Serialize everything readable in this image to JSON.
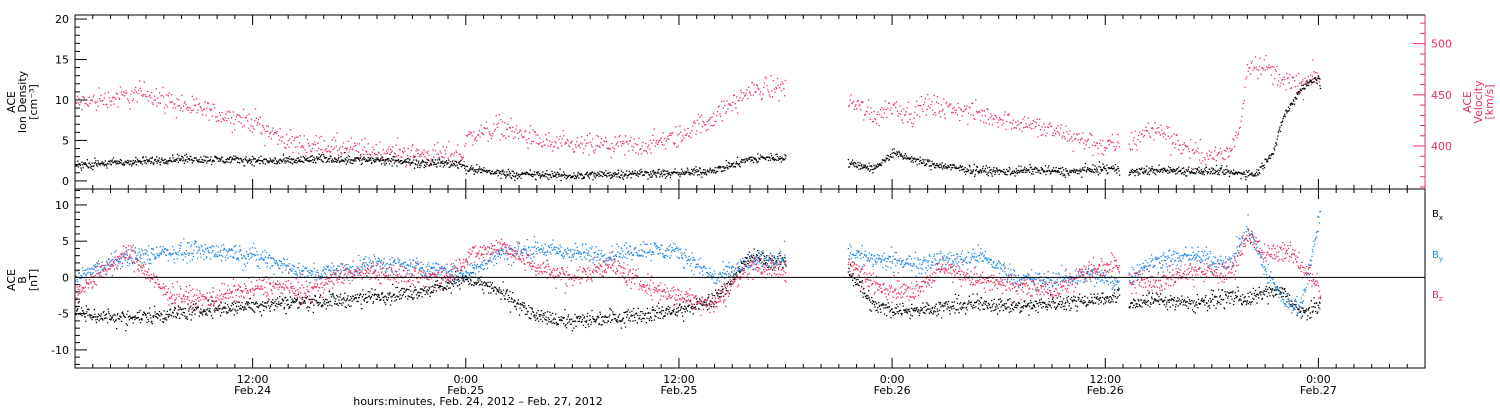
{
  "time_axis": {
    "title": "hours:minutes, Feb. 24, 2012 – Feb. 27, 2012",
    "ticks": [
      {
        "hours": 12,
        "time": "12:00",
        "date": "Feb.24"
      },
      {
        "hours": 24,
        "time": "0:00",
        "date": "Feb.25"
      },
      {
        "hours": 36,
        "time": "12:00",
        "date": "Feb.25"
      },
      {
        "hours": 48,
        "time": "0:00",
        "date": "Feb.26"
      },
      {
        "hours": 60,
        "time": "12:00",
        "date": "Feb.26"
      },
      {
        "hours": 72,
        "time": "0:00",
        "date": "Feb.27"
      }
    ],
    "range_hours": [
      2,
      78
    ]
  },
  "colors": {
    "density": "#000000",
    "velocity": "#e8305c",
    "bx": "#000000",
    "by": "#1e88e5",
    "bz": "#e8305c"
  },
  "chart_data": [
    {
      "type": "scatter",
      "panel": "plasma",
      "ylabel_left": [
        "ACE",
        "Ion Density",
        "[cm⁻³]"
      ],
      "ylabel_right": [
        "ACE",
        "Velocity",
        "[km/s]"
      ],
      "ylim_left": [
        -1,
        20.5
      ],
      "yticks_left": [
        0,
        5,
        10,
        15,
        20
      ],
      "ylim_right": [
        358,
        528
      ],
      "yticks_right": [
        400,
        450,
        500
      ],
      "grid": false,
      "data_gaps_hours": [
        [
          42,
          45.5
        ],
        [
          60.8,
          61.3
        ],
        [
          72.2,
          73.5
        ]
      ],
      "series": [
        {
          "name": "",
          "axis": "left",
          "x": [
            2,
            4,
            6,
            8,
            10,
            12,
            14,
            16,
            18,
            20,
            22,
            23.8,
            24,
            26,
            28,
            30,
            32,
            34,
            36,
            38,
            40,
            41.9,
            45.6,
            47,
            48,
            49,
            50,
            52,
            54,
            56,
            58,
            60,
            60.7,
            61.4,
            63,
            65,
            66.5,
            67.5,
            68.5,
            69.5,
            70,
            71,
            72,
            72.1
          ],
          "y": [
            2.0,
            2.3,
            2.5,
            2.8,
            2.7,
            2.6,
            2.5,
            2.8,
            2.7,
            2.5,
            2.3,
            2.2,
            1.6,
            1.0,
            0.8,
            0.7,
            0.9,
            1.0,
            1.0,
            1.4,
            2.8,
            3.0,
            2.2,
            1.6,
            3.5,
            2.8,
            2.2,
            1.5,
            1.2,
            1.4,
            1.2,
            1.6,
            1.5,
            1.2,
            1.4,
            1.3,
            1.2,
            1.0,
            1.0,
            4.0,
            8.0,
            11.5,
            13.0,
            11.0
          ]
        },
        {
          "name": "",
          "axis": "right",
          "x": [
            2,
            4,
            6,
            8,
            10,
            12,
            14,
            16,
            18,
            20,
            22,
            23.8,
            24,
            26,
            28,
            30,
            32,
            34,
            36,
            38,
            40,
            41.9,
            45.6,
            47,
            48,
            49,
            50,
            52,
            54,
            56,
            58,
            60,
            60.7,
            61.4,
            62.5,
            63.5,
            64.5,
            65.5,
            66.5,
            67,
            67.5,
            68,
            69,
            70,
            71,
            72,
            72.1
          ],
          "y": [
            442,
            447,
            452,
            440,
            432,
            424,
            404,
            400,
            396,
            394,
            392,
            392,
            408,
            420,
            405,
            400,
            402,
            400,
            410,
            430,
            455,
            458,
            445,
            430,
            440,
            432,
            440,
            435,
            428,
            420,
            410,
            400,
            402,
            402,
            418,
            412,
            398,
            390,
            392,
            395,
            415,
            482,
            478,
            465,
            460,
            470,
            458
          ]
        }
      ]
    },
    {
      "type": "scatter",
      "panel": "magnetic",
      "ylabel_left": [
        "ACE",
        "B",
        "[nT]"
      ],
      "ylim": [
        -12.5,
        12.2
      ],
      "yticks": [
        -10,
        -5,
        0,
        5,
        10
      ],
      "zero_line": true,
      "grid": false,
      "legend_position": "right",
      "data_gaps_hours": [
        [
          42,
          45.5
        ],
        [
          60.8,
          61.3
        ],
        [
          72.2,
          73.5
        ]
      ],
      "series": [
        {
          "name": "Bx",
          "legend_main": "B",
          "legend_sub": "x",
          "x": [
            2,
            3,
            5,
            7,
            9,
            11,
            13,
            15,
            17,
            19,
            21,
            23,
            23.8,
            24,
            26,
            28,
            30,
            32,
            34,
            36,
            38,
            40,
            41.9,
            45.6,
            47,
            49,
            51,
            53,
            55,
            57,
            59,
            60.7,
            61.4,
            63,
            65,
            67,
            68,
            69,
            70,
            71,
            72,
            72.1
          ],
          "y": [
            -4.5,
            -5.2,
            -5.5,
            -5.0,
            -4.5,
            -4.0,
            -3.5,
            -3.2,
            -3.0,
            -2.5,
            -2.0,
            -1.0,
            0.0,
            0.0,
            -2.0,
            -5.5,
            -6.0,
            -5.5,
            -5.0,
            -4.5,
            -3.0,
            3.0,
            2.0,
            1.0,
            -4.0,
            -4.5,
            -4.0,
            -3.5,
            -4.0,
            -3.5,
            -3.0,
            -2.5,
            -3.5,
            -3.0,
            -3.5,
            -2.5,
            -3.0,
            -2.0,
            -2.0,
            -5.0,
            -4.0,
            -2.0
          ]
        },
        {
          "name": "By",
          "legend_main": "B",
          "legend_sub": "y",
          "x": [
            2,
            3,
            5,
            7,
            9,
            11,
            13,
            15,
            17,
            19,
            21,
            23,
            23.8,
            24,
            26,
            28,
            30,
            32,
            34,
            36,
            38,
            40,
            41.9,
            45.6,
            47,
            49,
            51,
            53,
            55,
            57,
            59,
            60.7,
            61.4,
            63,
            65,
            67,
            68,
            69,
            70,
            71,
            72,
            72.1
          ],
          "y": [
            0.0,
            1.0,
            3.0,
            3.5,
            3.8,
            3.5,
            2.5,
            0.5,
            1.0,
            2.0,
            1.5,
            1.0,
            0.5,
            0.5,
            3.5,
            4.0,
            3.5,
            3.0,
            4.0,
            3.5,
            0.0,
            2.0,
            3.0,
            3.5,
            2.5,
            2.0,
            2.5,
            3.0,
            0.0,
            -0.5,
            0.5,
            -0.5,
            0.5,
            2.5,
            3.0,
            2.0,
            7.0,
            1.0,
            -3.0,
            -4.0,
            8.0,
            9.0
          ]
        },
        {
          "name": "Bz",
          "legend_main": "B",
          "legend_sub": "z",
          "x": [
            2,
            3,
            5,
            7,
            9,
            11,
            13,
            15,
            17,
            19,
            21,
            23,
            23.8,
            24,
            26,
            28,
            30,
            32,
            34,
            36,
            38,
            40,
            41.9,
            45.6,
            47,
            49,
            51,
            53,
            55,
            57,
            59,
            60.7,
            61.4,
            63,
            65,
            67,
            68,
            69,
            70,
            71,
            72,
            72.1
          ],
          "y": [
            -2.5,
            0.0,
            3.5,
            -2.0,
            -3.0,
            -2.0,
            -1.0,
            -2.0,
            0.5,
            1.0,
            0.0,
            0.5,
            2.0,
            3.0,
            4.5,
            1.5,
            0.0,
            2.0,
            -1.0,
            -2.5,
            -3.5,
            2.0,
            1.0,
            2.0,
            -1.0,
            -2.0,
            1.5,
            -0.5,
            -1.0,
            -2.0,
            1.0,
            2.0,
            0.0,
            -0.5,
            1.0,
            0.5,
            6.0,
            3.0,
            4.0,
            2.0,
            -1.0,
            -4.0
          ]
        }
      ]
    }
  ]
}
